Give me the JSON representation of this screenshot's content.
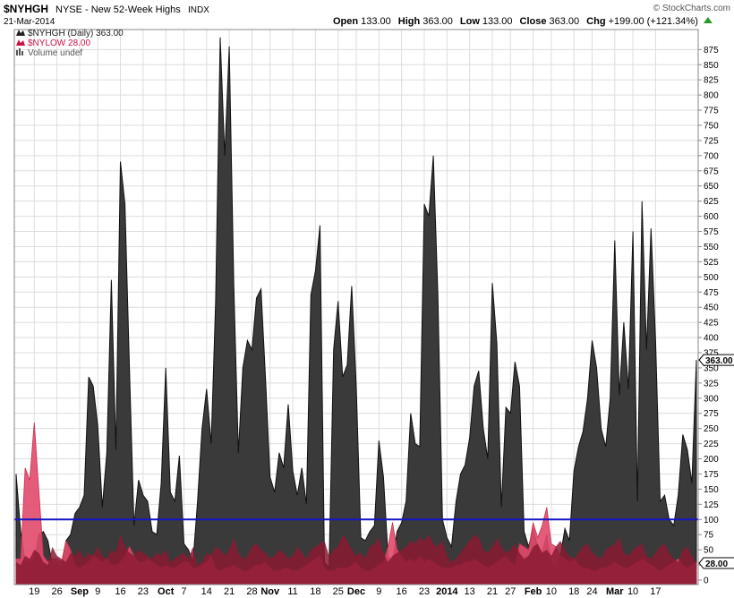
{
  "header": {
    "symbol": "$NYHGH",
    "description": "NYSE - New 52-Week Highs",
    "exchange": "INDX",
    "date": "21-Mar-2014",
    "copyright": "© StockCharts.com",
    "ohlc": [
      {
        "label": "Open",
        "value": "133.00"
      },
      {
        "label": "High",
        "value": "363.00"
      },
      {
        "label": "Low",
        "value": "133.00"
      },
      {
        "label": "Close",
        "value": "363.00"
      },
      {
        "label": "Chg",
        "value": "+199.00 (+121.34%)"
      }
    ],
    "change_icon": "up-triangle-icon"
  },
  "legend": [
    {
      "text": "$NYHGH (Daily) 363.00",
      "color": "#222222"
    },
    {
      "text": "$NYLOW 28.00",
      "color": "#cc1144"
    },
    {
      "text": "Volume undef",
      "color": "#555555"
    }
  ],
  "badges": [
    {
      "text": "363.00",
      "value": 363
    },
    {
      "text": "28.00",
      "value": 28
    }
  ],
  "chart_data": {
    "type": "area",
    "x_labels": [
      {
        "i": 4,
        "text": "19"
      },
      {
        "i": 9,
        "text": "26"
      },
      {
        "i": 14,
        "text": "Sep"
      },
      {
        "i": 18,
        "text": "9"
      },
      {
        "i": 23,
        "text": "16"
      },
      {
        "i": 28,
        "text": "23"
      },
      {
        "i": 33,
        "text": "Oct"
      },
      {
        "i": 37,
        "text": "7"
      },
      {
        "i": 42,
        "text": "14"
      },
      {
        "i": 47,
        "text": "21"
      },
      {
        "i": 52,
        "text": "28"
      },
      {
        "i": 56,
        "text": "Nov"
      },
      {
        "i": 61,
        "text": "11"
      },
      {
        "i": 66,
        "text": "18"
      },
      {
        "i": 71,
        "text": "25"
      },
      {
        "i": 75,
        "text": "Dec"
      },
      {
        "i": 80,
        "text": "9"
      },
      {
        "i": 85,
        "text": "16"
      },
      {
        "i": 90,
        "text": "23"
      },
      {
        "i": 95,
        "text": "2014"
      },
      {
        "i": 100,
        "text": "13"
      },
      {
        "i": 105,
        "text": "21"
      },
      {
        "i": 109,
        "text": "27"
      },
      {
        "i": 114,
        "text": "Feb"
      },
      {
        "i": 118,
        "text": "10"
      },
      {
        "i": 123,
        "text": "18"
      },
      {
        "i": 127,
        "text": "24"
      },
      {
        "i": 132,
        "text": "Mar"
      },
      {
        "i": 136,
        "text": "10"
      },
      {
        "i": 141,
        "text": "17"
      }
    ],
    "y_ticks": [
      0,
      25,
      50,
      75,
      100,
      125,
      150,
      175,
      200,
      225,
      250,
      275,
      300,
      325,
      350,
      375,
      400,
      425,
      450,
      475,
      500,
      525,
      550,
      575,
      600,
      625,
      650,
      675,
      700,
      725,
      750,
      775,
      800,
      825,
      850,
      875
    ],
    "ylim": [
      0,
      905
    ],
    "reference_line": 100,
    "grid": true,
    "series": [
      {
        "name": "$NYHGH",
        "color": "#3a3a3a",
        "values": [
          175,
          80,
          30,
          30,
          30,
          75,
          80,
          65,
          25,
          30,
          20,
          65,
          75,
          110,
          120,
          140,
          335,
          320,
          255,
          120,
          210,
          495,
          215,
          690,
          620,
          345,
          90,
          165,
          140,
          130,
          80,
          75,
          160,
          350,
          145,
          130,
          205,
          60,
          50,
          30,
          130,
          250,
          315,
          225,
          460,
          895,
          700,
          880,
          485,
          210,
          350,
          395,
          380,
          465,
          480,
          330,
          170,
          145,
          210,
          185,
          290,
          180,
          140,
          185,
          125,
          470,
          510,
          585,
          30,
          20,
          380,
          460,
          335,
          355,
          485,
          320,
          70,
          65,
          80,
          90,
          230,
          170,
          40,
          30,
          80,
          95,
          130,
          275,
          225,
          220,
          620,
          600,
          700,
          470,
          100,
          70,
          55,
          130,
          175,
          190,
          235,
          320,
          345,
          250,
          200,
          490,
          390,
          120,
          285,
          275,
          360,
          320,
          80,
          55,
          85,
          55,
          45,
          75,
          30,
          20,
          40,
          85,
          65,
          180,
          220,
          245,
          300,
          395,
          350,
          250,
          220,
          300,
          560,
          305,
          425,
          315,
          575,
          130,
          625,
          380,
          580,
          395,
          130,
          140,
          100,
          90,
          140,
          240,
          215,
          160,
          363
        ]
      },
      {
        "name": "$NYLOW",
        "color": "#e14a6c",
        "values": [
          35,
          35,
          185,
          165,
          260,
          150,
          40,
          30,
          35,
          35,
          30,
          65,
          50,
          25,
          20,
          25,
          30,
          40,
          35,
          30,
          35,
          25,
          25,
          30,
          40,
          55,
          40,
          30,
          30,
          35,
          30,
          25,
          20,
          25,
          20,
          20,
          25,
          30,
          30,
          20,
          20,
          25,
          30,
          40,
          20,
          15,
          20,
          20,
          25,
          20,
          15,
          15,
          20,
          25,
          25,
          30,
          20,
          15,
          15,
          20,
          20,
          15,
          15,
          20,
          25,
          30,
          35,
          40,
          20,
          15,
          15,
          20,
          20,
          20,
          25,
          30,
          20,
          15,
          15,
          20,
          25,
          30,
          55,
          95,
          50,
          40,
          30,
          35,
          30,
          40,
          30,
          35,
          30,
          25,
          20,
          20,
          20,
          25,
          25,
          30,
          30,
          35,
          30,
          25,
          20,
          25,
          30,
          35,
          40,
          30,
          25,
          60,
          55,
          50,
          95,
          70,
          90,
          120,
          60,
          55,
          40,
          35,
          30,
          35,
          25,
          20,
          20,
          15,
          15,
          20,
          20,
          25,
          30,
          25,
          20,
          20,
          25,
          30,
          35,
          30,
          25,
          20,
          15,
          20,
          25,
          30,
          35,
          25,
          20,
          25,
          28
        ]
      },
      {
        "name": "Volume",
        "color": "#8b1a32",
        "values": [
          30,
          25,
          40,
          35,
          50,
          45,
          30,
          25,
          55,
          40,
          35,
          30,
          45,
          40,
          50,
          35,
          45,
          40,
          55,
          40,
          35,
          50,
          45,
          75,
          55,
          45,
          40,
          50,
          45,
          40,
          35,
          45,
          40,
          50,
          30,
          35,
          40,
          45,
          35,
          55,
          25,
          30,
          45,
          40,
          55,
          50,
          40,
          50,
          70,
          45,
          35,
          40,
          55,
          60,
          50,
          45,
          35,
          40,
          50,
          45,
          35,
          40,
          55,
          45,
          35,
          50,
          55,
          60,
          65,
          40,
          50,
          55,
          75,
          65,
          50,
          40,
          45,
          35,
          55,
          60,
          70,
          45,
          30,
          40,
          45,
          50,
          55,
          65,
          60,
          70,
          65,
          75,
          60,
          55,
          65,
          40,
          30,
          35,
          45,
          55,
          65,
          75,
          70,
          50,
          45,
          55,
          70,
          55,
          45,
          50,
          60,
          45,
          35,
          40,
          55,
          60,
          45,
          50,
          40,
          55,
          65,
          50,
          40,
          35,
          45,
          55,
          60,
          45,
          40,
          35,
          50,
          55,
          60,
          70,
          45,
          40,
          50,
          55,
          60,
          40,
          35,
          45,
          55,
          60,
          45,
          35,
          30,
          50,
          55,
          40,
          30
        ]
      }
    ]
  }
}
